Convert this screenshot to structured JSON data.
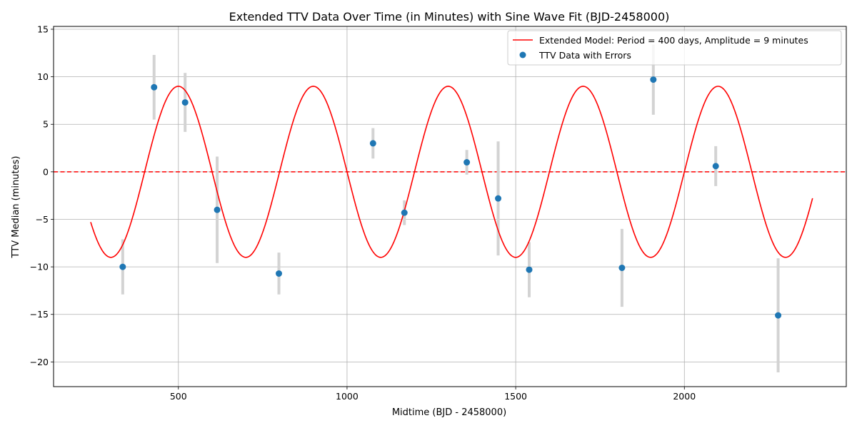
{
  "chart_data": {
    "type": "scatter",
    "title": "Extended TTV Data Over Time (in Minutes) with Sine Wave Fit (BJD-2458000)",
    "xlabel": "Midtime (BJD - 2458000)",
    "ylabel": "TTV Median (minutes)",
    "xlim": [
      130,
      2480
    ],
    "ylim": [
      -22.6,
      15.3
    ],
    "xticks": [
      500,
      1000,
      1500,
      2000
    ],
    "yticks": [
      -20,
      -15,
      -10,
      -5,
      0,
      5,
      10,
      15
    ],
    "xtick_labels": [
      "500",
      "1000",
      "1500",
      "2000"
    ],
    "ytick_labels": [
      "−20",
      "−15",
      "−10",
      "−5",
      "0",
      "5",
      "10",
      "15"
    ],
    "grid": true,
    "legend_position": "top-right",
    "colors": {
      "model": "#ff0000",
      "points": "#1f77b4",
      "errorbars": "#d3d3d3",
      "zero_line": "#ff0000",
      "grid": "#b0b0b0"
    },
    "model": {
      "name": "Extended Model: Period = 400 days, Amplitude = 9 minutes",
      "period": 400,
      "amplitude": 9,
      "phase_reference": 400,
      "x_start": 240,
      "x_end": 2380
    },
    "reference_line": {
      "y": 0,
      "style": "dashed"
    },
    "series": [
      {
        "name": "TTV Data with Errors",
        "points": [
          {
            "x": 335,
            "y": -10.0,
            "err": 2.9
          },
          {
            "x": 428,
            "y": 8.9,
            "err": 3.4
          },
          {
            "x": 520,
            "y": 7.3,
            "err": 3.1
          },
          {
            "x": 615,
            "y": -4.0,
            "err": 5.6
          },
          {
            "x": 798,
            "y": -10.7,
            "err": 2.2
          },
          {
            "x": 1077,
            "y": 3.0,
            "err": 1.6
          },
          {
            "x": 1170,
            "y": -4.3,
            "err": 1.3
          },
          {
            "x": 1355,
            "y": 1.0,
            "err": 1.3
          },
          {
            "x": 1448,
            "y": -2.8,
            "err": 6.0
          },
          {
            "x": 1540,
            "y": -10.3,
            "err": 2.9
          },
          {
            "x": 1815,
            "y": -10.1,
            "err": 4.1
          },
          {
            "x": 1908,
            "y": 9.7,
            "err": 3.7
          },
          {
            "x": 2093,
            "y": 0.6,
            "err": 2.1
          },
          {
            "x": 2278,
            "y": -15.1,
            "err": 6.0
          }
        ]
      }
    ]
  }
}
